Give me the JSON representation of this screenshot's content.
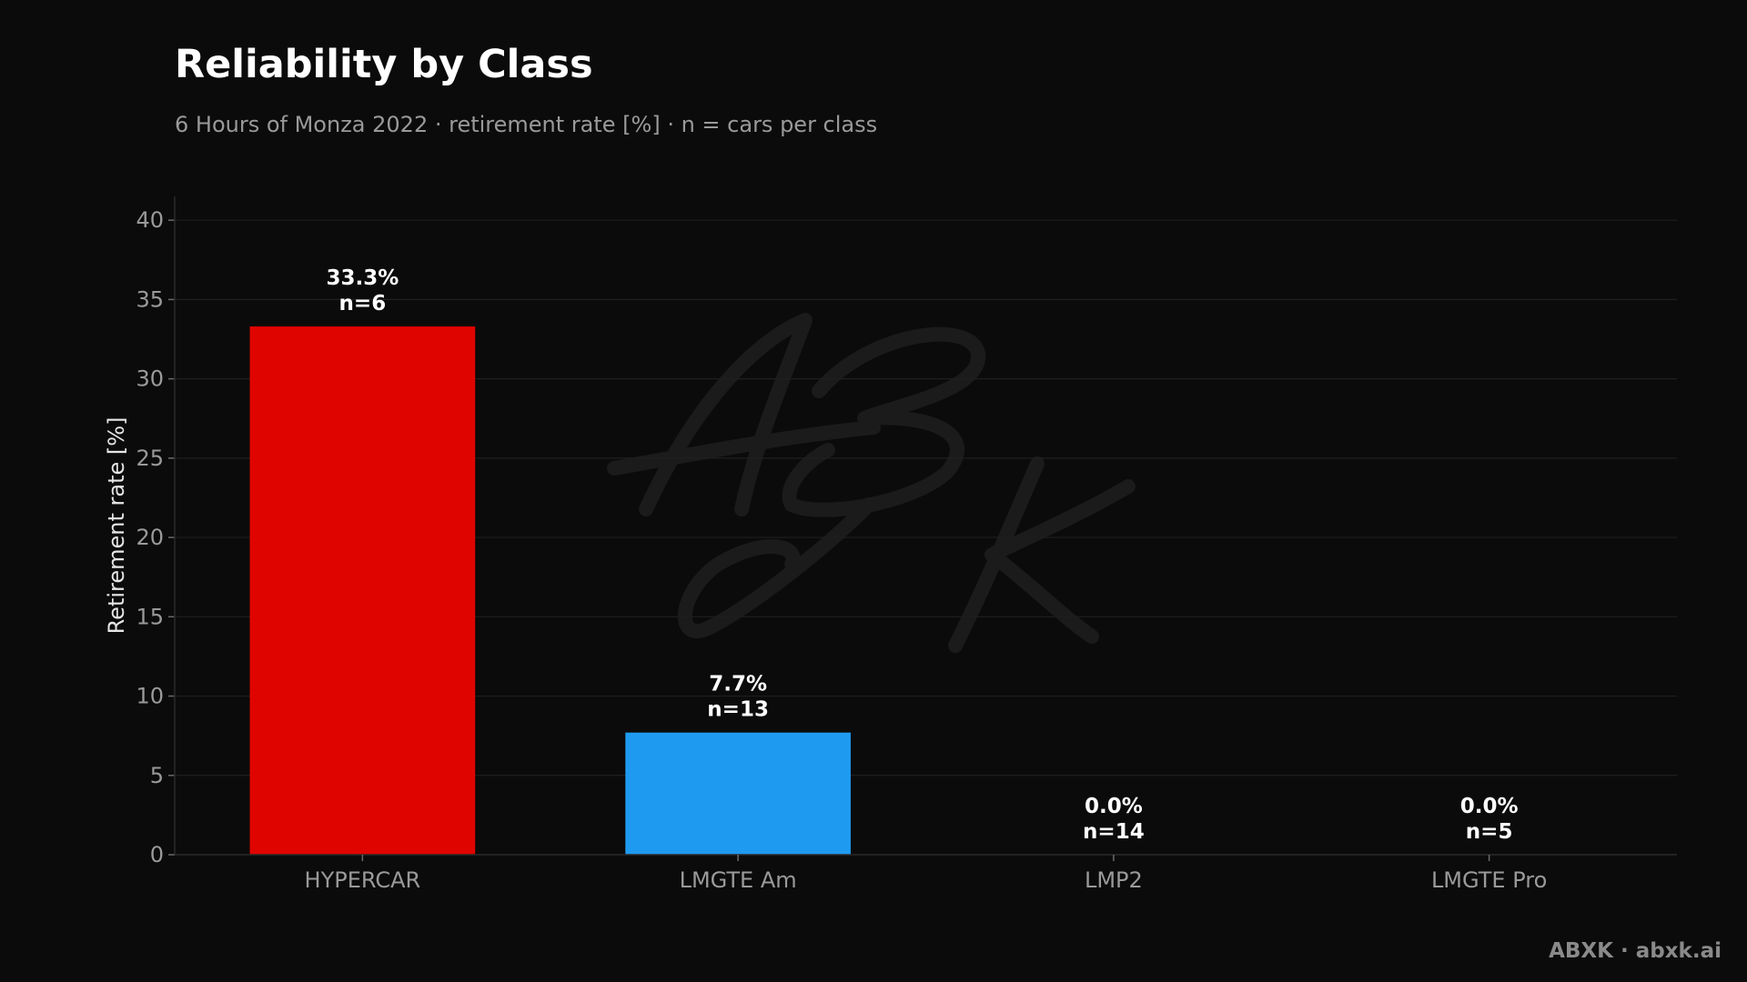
{
  "title": "Reliability by Class",
  "subtitle": "6 Hours of Monza 2022 · retirement rate [%] · n = cars per class",
  "footer": "ABXK · abxk.ai",
  "watermark": "ABXK",
  "colors": {
    "background": "#0b0b0b",
    "HYPERCAR": "#e00400",
    "LMGTE Am": "#1e9bf0",
    "LMP2": "#1e9bf0",
    "LMGTE Pro": "#1e9bf0"
  },
  "chart_data": {
    "type": "bar",
    "title": "Reliability by Class",
    "subtitle": "6 Hours of Monza 2022 · retirement rate [%] · n = cars per class",
    "xlabel": "",
    "ylabel": "Retirement rate [%]",
    "categories": [
      "HYPERCAR",
      "LMGTE Am",
      "LMP2",
      "LMGTE Pro"
    ],
    "values": [
      33.3,
      7.7,
      0.0,
      0.0
    ],
    "n": [
      6,
      13,
      14,
      5
    ],
    "data_labels": [
      [
        "33.3%",
        "n=6"
      ],
      [
        "7.7%",
        "n=13"
      ],
      [
        "0.0%",
        "n=14"
      ],
      [
        "0.0%",
        "n=5"
      ]
    ],
    "ylim": [
      0,
      41.5
    ],
    "yticks": [
      0,
      5,
      10,
      15,
      20,
      25,
      30,
      35,
      40
    ],
    "grid": true,
    "legend": "none"
  }
}
